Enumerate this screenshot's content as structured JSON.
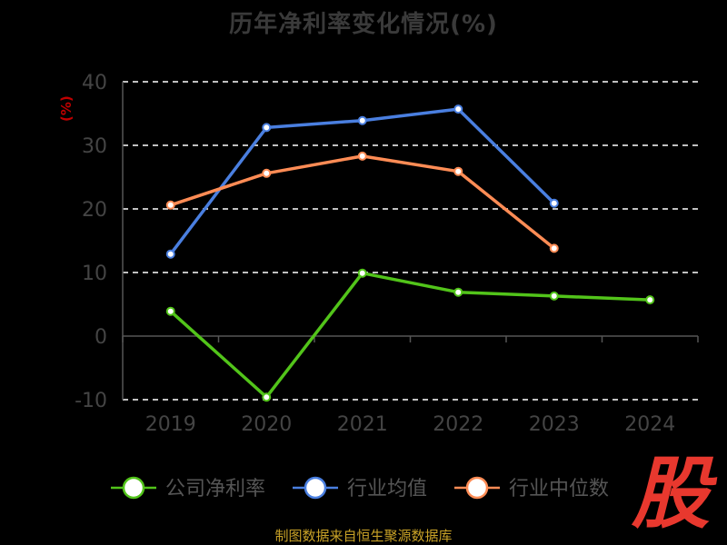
{
  "title": "历年净利率变化情况(%)",
  "y_unit_label": "(%)",
  "footer_source": "制图数据来自恒生聚源数据库",
  "brand_logo_text": "股",
  "colors": {
    "background": "#000000",
    "grid": "#ffffff",
    "axis": "#555555",
    "tick_text": "#444444",
    "legend_text": "#555555"
  },
  "chart_data": {
    "type": "line",
    "categories": [
      "2019",
      "2020",
      "2021",
      "2022",
      "2023",
      "2024"
    ],
    "ylim": [
      -10,
      40
    ],
    "yticks": [
      "-10",
      "0",
      "10",
      "20",
      "30",
      "40"
    ],
    "xlabel": "",
    "ylabel": "(%)",
    "grid": "horizontal-dashed",
    "legend_position": "bottom",
    "series": [
      {
        "name": "公司净利率",
        "color": "#52c41a",
        "values": [
          3.9,
          -9.6,
          9.9,
          6.9,
          6.3,
          5.7
        ]
      },
      {
        "name": "行业均值",
        "color": "#4a7fe0",
        "values": [
          12.9,
          32.8,
          33.9,
          35.7,
          20.9,
          null
        ]
      },
      {
        "name": "行业中位数",
        "color": "#ff8c55",
        "values": [
          20.6,
          25.6,
          28.3,
          25.9,
          13.8,
          null
        ]
      }
    ]
  }
}
